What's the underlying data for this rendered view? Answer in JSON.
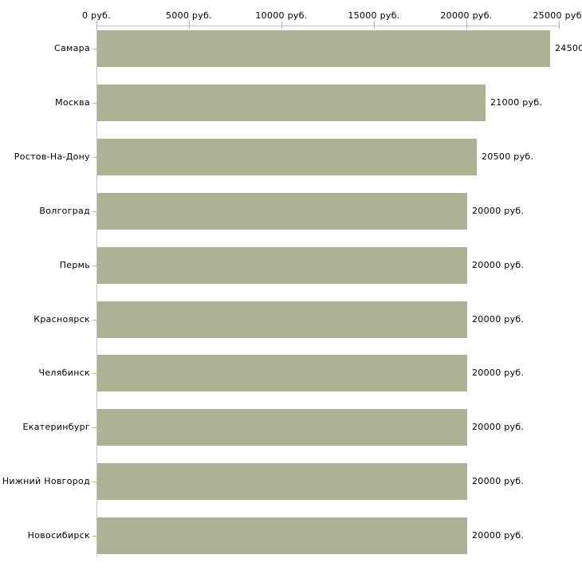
{
  "chart_data": {
    "type": "bar",
    "orientation": "horizontal",
    "title": "",
    "xlabel": "",
    "ylabel": "",
    "categories": [
      "Самара",
      "Москва",
      "Ростов-На-Дону",
      "Волгоград",
      "Пермь",
      "Красноярск",
      "Челябинск",
      "Екатеринбург",
      "Нижний Новгород",
      "Новосибирск"
    ],
    "values": [
      24500,
      21000,
      20500,
      20000,
      20000,
      20000,
      20000,
      20000,
      20000,
      20000
    ],
    "value_labels": [
      "24500",
      "21000 руб.",
      "20500 руб.",
      "20000 руб.",
      "20000 руб.",
      "20000 руб.",
      "20000 руб.",
      "20000 руб.",
      "20000 руб.",
      "20000 руб."
    ],
    "value_unit": "руб.",
    "x_axis": {
      "position": "top",
      "range": [
        0,
        25000
      ],
      "ticks": [
        0,
        5000,
        10000,
        15000,
        20000,
        25000
      ],
      "tick_labels": [
        "0 руб.",
        "5000 руб.",
        "10000 руб.",
        "15000 руб.",
        "20000 руб.",
        "25000 руб."
      ]
    },
    "grid": false,
    "legend": false,
    "colors": {
      "bar": "#aeb295",
      "axis_line": "#c5c5c5",
      "tick": "#bcb878",
      "text": "#000000",
      "background": "#ffffff"
    }
  }
}
